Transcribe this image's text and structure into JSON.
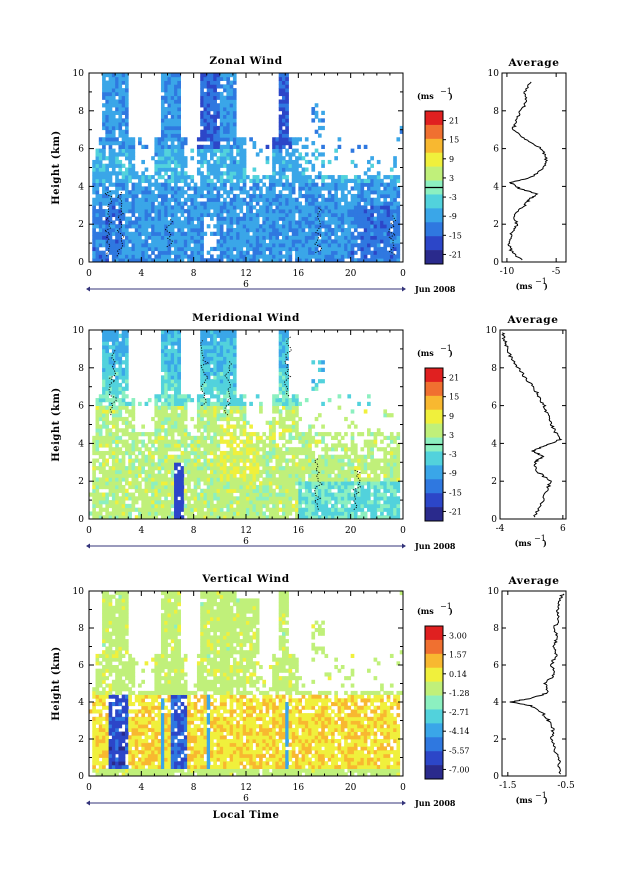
{
  "figure": {
    "date_label": "Jun 2008",
    "day_label": "6",
    "xlabel": "Local Time",
    "x_ticks": [
      "0",
      "4",
      "8",
      "12",
      "16",
      "20",
      "0"
    ],
    "height_ticks": [
      "0",
      "2",
      "4",
      "6",
      "8",
      "10"
    ],
    "ylabel": "Height (km)",
    "unit_label": "(ms",
    "unit_sup": "−1",
    "colors": [
      "#2a2a8c",
      "#2c46c8",
      "#2f78e0",
      "#3aa6e8",
      "#52d2dc",
      "#8cf0c0",
      "#c0f07a",
      "#f0f03c",
      "#f8b830",
      "#f07030",
      "#e02020"
    ]
  },
  "chart_data": [
    {
      "type": "heatmap",
      "title": "Zonal Wind",
      "xlabel": "",
      "ylabel": "Height (km)",
      "xlim": [
        0,
        24
      ],
      "ylim": [
        0,
        10
      ],
      "colorbar_ticks": [
        "21",
        "15",
        "9",
        "3",
        "-3",
        "-9",
        "-15",
        "-21"
      ],
      "colorbar_range": [
        -24,
        24
      ],
      "zero_contour": true,
      "average": {
        "title": "Average",
        "xlabel": "(ms",
        "xlabel_sup": "−1",
        "xlim": [
          -10.5,
          -4
        ],
        "x_ticks": [
          "-10",
          "-5"
        ],
        "x_tick_values": [
          -10,
          -5
        ],
        "y_ticks": [
          "0",
          "2",
          "4",
          "6",
          "8",
          "10"
        ],
        "profile": {
          "height": [
            0.1,
            0.5,
            1.0,
            1.5,
            2.0,
            2.5,
            3.0,
            3.3,
            3.6,
            3.9,
            4.2,
            4.5,
            5.0,
            5.5,
            6.0,
            6.5,
            7.0,
            7.5,
            8.0,
            8.5,
            9.0,
            9.6
          ],
          "value": [
            -8.5,
            -9.5,
            -9.8,
            -9.6,
            -9.0,
            -9.4,
            -8.2,
            -7.8,
            -7.0,
            -8.8,
            -9.6,
            -7.5,
            -6.2,
            -6.0,
            -6.5,
            -8.2,
            -9.4,
            -9.0,
            -8.6,
            -8.0,
            -8.2,
            -7.6
          ]
        }
      }
    },
    {
      "type": "heatmap",
      "title": "Meridional Wind",
      "xlabel": "",
      "ylabel": "Height (km)",
      "xlim": [
        0,
        24
      ],
      "ylim": [
        0,
        10
      ],
      "colorbar_ticks": [
        "21",
        "15",
        "9",
        "3",
        "-3",
        "-9",
        "-15",
        "-21"
      ],
      "colorbar_range": [
        -24,
        24
      ],
      "zero_contour": true,
      "average": {
        "title": "Average",
        "xlabel": "(ms",
        "xlabel_sup": "−1",
        "xlim": [
          -4,
          6.5
        ],
        "x_ticks": [
          "-4",
          "6"
        ],
        "x_tick_values": [
          -4,
          6
        ],
        "y_ticks": [
          "0",
          "2",
          "4",
          "6",
          "8",
          "10"
        ],
        "profile": {
          "height": [
            0.1,
            0.8,
            1.5,
            2.0,
            2.5,
            3.0,
            3.3,
            3.6,
            3.9,
            4.2,
            4.6,
            5.0,
            5.5,
            6.0,
            6.5,
            7.0,
            7.5,
            8.0,
            8.5,
            9.0,
            9.5,
            9.9
          ],
          "value": [
            1.5,
            2.5,
            3.5,
            4.0,
            2.0,
            1.5,
            2.8,
            1.2,
            3.2,
            5.5,
            4.8,
            4.2,
            3.6,
            3.0,
            2.2,
            1.2,
            0.0,
            -1.2,
            -2.2,
            -2.8,
            -3.3,
            -3.6
          ]
        }
      }
    },
    {
      "type": "heatmap",
      "title": "Vertical Wind",
      "xlabel": "Local Time",
      "ylabel": "Height (km)",
      "xlim": [
        0,
        24
      ],
      "ylim": [
        0,
        10
      ],
      "colorbar_ticks": [
        "3.00",
        "1.57",
        "0.14",
        "-1.28",
        "-2.71",
        "-4.14",
        "-5.57",
        "-7.00"
      ],
      "colorbar_range": [
        -7.7,
        3.7
      ],
      "zero_contour": false,
      "average": {
        "title": "Average",
        "xlabel": "(ms",
        "xlabel_sup": "−1",
        "xlim": [
          -1.6,
          -0.5
        ],
        "x_ticks": [
          "-1.5",
          "-0.5"
        ],
        "x_tick_values": [
          -1.5,
          -0.5
        ],
        "y_ticks": [
          "0",
          "2",
          "4",
          "6",
          "8",
          "10"
        ],
        "profile": {
          "height": [
            0.1,
            0.8,
            1.5,
            2.0,
            2.5,
            3.0,
            3.4,
            3.8,
            4.0,
            4.2,
            4.5,
            5.0,
            5.5,
            6.0,
            6.5,
            7.0,
            7.5,
            8.0,
            8.5,
            9.0,
            9.5,
            9.9
          ],
          "value": [
            -0.6,
            -0.62,
            -0.7,
            -0.75,
            -0.72,
            -0.8,
            -0.9,
            -1.1,
            -1.45,
            -1.1,
            -0.8,
            -0.85,
            -0.7,
            -0.75,
            -0.68,
            -0.7,
            -0.66,
            -0.7,
            -0.63,
            -0.65,
            -0.6,
            -0.55
          ]
        }
      }
    }
  ]
}
